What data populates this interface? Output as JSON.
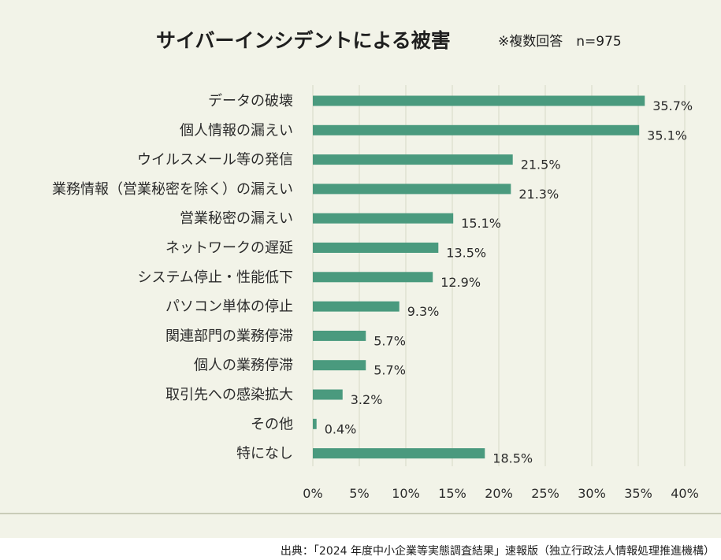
{
  "header": {
    "title": "サイバーインシデントによる被害",
    "note": "※複数回答　n=975"
  },
  "footer": {
    "source": "出典：「2024 年度中小企業等実態調査結果」速報版（独立行政法人情報処理推進機構）"
  },
  "colors": {
    "bar": "#4a9a7e",
    "grid": "#d7d9c6",
    "panel": "#f2f3e8"
  },
  "chart_data": {
    "type": "bar",
    "orientation": "horizontal",
    "title": "サイバーインシデントによる被害",
    "xlabel": "",
    "ylabel": "",
    "xlim": [
      0,
      40
    ],
    "xticks": [
      "0%",
      "5%",
      "10%",
      "15%",
      "20%",
      "25%",
      "30%",
      "35%",
      "40%"
    ],
    "grid": true,
    "categories": [
      "データの破壊",
      "個人情報の漏えい",
      "ウイルスメール等の発信",
      "業務情報（営業秘密を除く）の漏えい",
      "営業秘密の漏えい",
      "ネットワークの遅延",
      "システム停止・性能低下",
      "パソコン単体の停止",
      "関連部門の業務停滞",
      "個人の業務停滞",
      "取引先への感染拡大",
      "その他",
      "特になし"
    ],
    "values": [
      35.7,
      35.1,
      21.5,
      21.3,
      15.1,
      13.5,
      12.9,
      9.3,
      5.7,
      5.7,
      3.2,
      0.4,
      18.5
    ],
    "value_labels": [
      "35.7%",
      "35.1%",
      "21.5%",
      "21.3%",
      "15.1%",
      "13.5%",
      "12.9%",
      "9.3%",
      "5.7%",
      "5.7%",
      "3.2%",
      "0.4%",
      "18.5%"
    ]
  }
}
